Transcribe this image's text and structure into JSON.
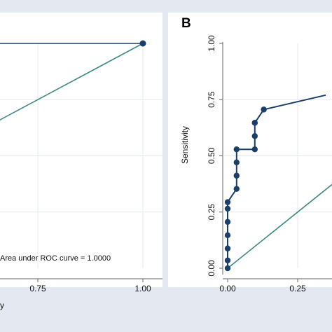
{
  "colors": {
    "roc": "#1a3f6b",
    "reference": "#3f8a80",
    "background": "#e4e9f1",
    "grid": "#e4e9f1",
    "panel_bg": "#ffffff"
  },
  "chart_data": [
    {
      "type": "line",
      "panel": "A",
      "panel_label": "",
      "xlabel": "y",
      "ylabel": "",
      "xlim": [
        0,
        1
      ],
      "ylim": [
        0,
        1
      ],
      "x_ticks": [
        "0.75",
        "1.00"
      ],
      "annotation": "Area under ROC curve = 1.0000",
      "grid": true,
      "series": [
        {
          "role": "roc",
          "x": [
            0,
            1.0
          ],
          "y": [
            1.0,
            1.0
          ]
        },
        {
          "role": "reference",
          "x": [
            0,
            1
          ],
          "y": [
            0,
            1
          ]
        }
      ]
    },
    {
      "type": "line",
      "panel": "B",
      "panel_label": "B",
      "xlabel": "",
      "ylabel": "Sensitivity",
      "xlim": [
        0,
        1
      ],
      "ylim": [
        0,
        1
      ],
      "x_ticks": [
        "0.00",
        "0.25"
      ],
      "y_ticks": [
        "0.00",
        "0.25",
        "0.50",
        "0.75",
        "1.00"
      ],
      "grid": true,
      "series": [
        {
          "role": "roc",
          "x": [
            0,
            0,
            0,
            0,
            0,
            0,
            0,
            0.032,
            0.032,
            0.032,
            0.032,
            0.097,
            0.097,
            0.097,
            0.097,
            0.129,
            0.35
          ],
          "y": [
            0,
            0.035,
            0.088,
            0.147,
            0.206,
            0.265,
            0.294,
            0.353,
            0.412,
            0.471,
            0.529,
            0.529,
            0.588,
            0.647,
            0.647,
            0.706,
            0.77
          ]
        },
        {
          "role": "reference",
          "x": [
            0,
            1
          ],
          "y": [
            0,
            1
          ]
        }
      ]
    }
  ]
}
